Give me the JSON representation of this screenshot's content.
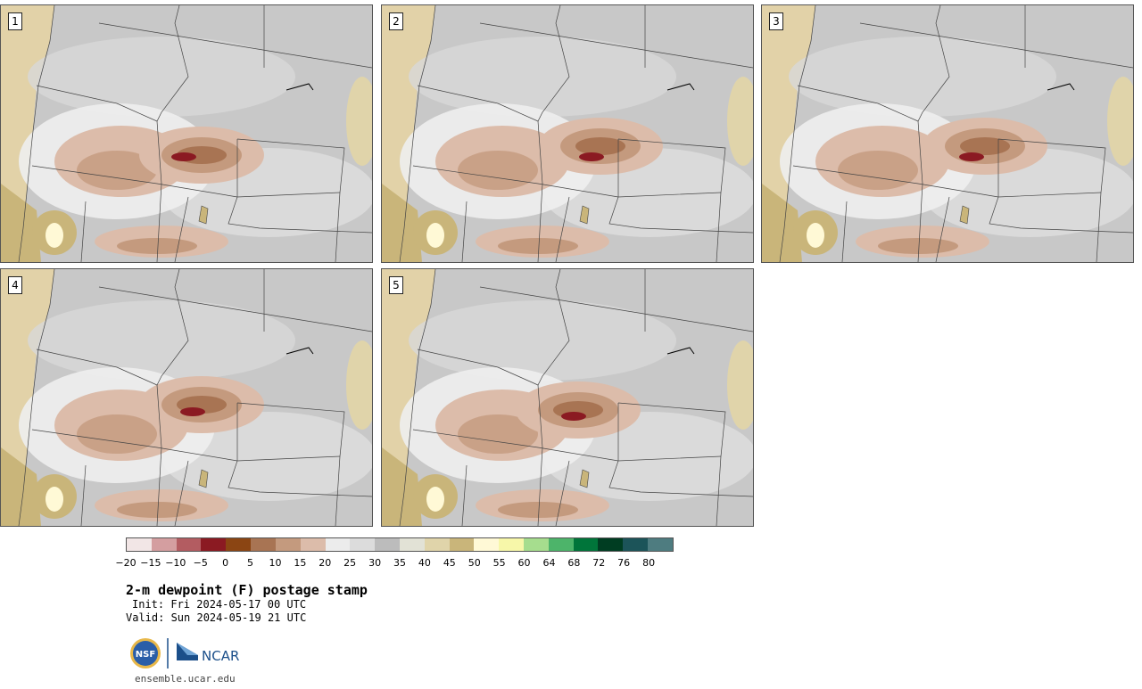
{
  "panels": [
    {
      "label": "1"
    },
    {
      "label": "2"
    },
    {
      "label": "3"
    },
    {
      "label": "4"
    },
    {
      "label": "5"
    }
  ],
  "colorbar": {
    "colors": [
      "#f2e6e6",
      "#d49ea0",
      "#b35c61",
      "#8b1a22",
      "#8b4513",
      "#a87453",
      "#c49a7e",
      "#dcbcaa",
      "#ececec",
      "#dcdcdc",
      "#bcbcbc",
      "#e2e2d6",
      "#e0d4aa",
      "#c9b57a",
      "#fff9d6",
      "#f7f7a9",
      "#a6dd8e",
      "#4db46a",
      "#00753a",
      "#003d22",
      "#1c5459",
      "#4e7c80"
    ],
    "ticks": [
      "−20",
      "−15",
      "−10",
      "−5",
      "0",
      "5",
      "10",
      "15",
      "20",
      "25",
      "30",
      "35",
      "40",
      "45",
      "50",
      "55",
      "60",
      "64",
      "68",
      "72",
      "76",
      "80"
    ]
  },
  "title": "2-m dewpoint (F) postage stamp",
  "init": "Init: Fri 2024-05-17 00 UTC",
  "valid": "Valid: Sun 2024-05-19 21 UTC",
  "logos": {
    "nsf": "NSF",
    "ncar": "NCAR"
  },
  "site": "ensemble.ucar.edu"
}
